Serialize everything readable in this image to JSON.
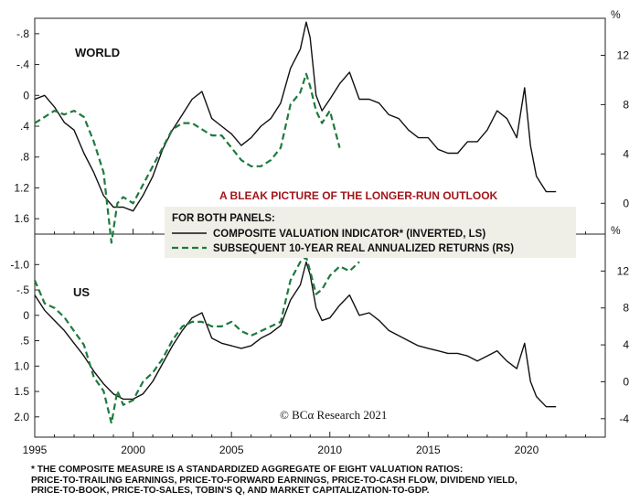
{
  "chart_data": [
    {
      "type": "line",
      "panel": "WORLD",
      "annotation": "A BLEAK PICTURE OF THE LONGER-RUN OUTLOOK",
      "x_range": [
        1995,
        2024
      ],
      "x_ticks": [
        "1995",
        "2000",
        "2005",
        "2010",
        "2015",
        "2020"
      ],
      "y_left": {
        "ticks": [
          "-.8",
          "-.4",
          "0",
          ".4",
          ".8",
          "1.2",
          "1.6"
        ],
        "ylim": [
          1.8,
          -1.0
        ],
        "inverted": true
      },
      "y_right": {
        "unit": "%",
        "ticks": [
          "0",
          "4",
          "8",
          "12"
        ],
        "ylim": [
          -2.5,
          15
        ]
      },
      "series": [
        {
          "name": "COMPOSITE VALUATION INDICATOR* (INVERTED, LS)",
          "axis": "left",
          "color": "#111111",
          "style": "solid",
          "x": [
            1995.0,
            1995.5,
            1996.0,
            1996.5,
            1997.0,
            1997.5,
            1998.0,
            1998.5,
            1999.0,
            1999.5,
            2000.0,
            2000.5,
            2001.0,
            2001.5,
            2002.0,
            2002.5,
            2003.0,
            2003.5,
            2004.0,
            2004.5,
            2005.0,
            2005.5,
            2006.0,
            2006.5,
            2007.0,
            2007.5,
            2008.0,
            2008.5,
            2008.8,
            2009.0,
            2009.3,
            2009.6,
            2010.0,
            2010.5,
            2011.0,
            2011.5,
            2012.0,
            2012.5,
            2013.0,
            2013.5,
            2014.0,
            2014.5,
            2015.0,
            2015.5,
            2016.0,
            2016.5,
            2017.0,
            2017.5,
            2018.0,
            2018.5,
            2019.0,
            2019.5,
            2019.9,
            2020.2,
            2020.5,
            2021.0,
            2021.5
          ],
          "y": [
            0.05,
            0.0,
            0.15,
            0.35,
            0.45,
            0.75,
            1.0,
            1.3,
            1.45,
            1.45,
            1.5,
            1.3,
            1.05,
            0.7,
            0.45,
            0.25,
            0.05,
            -0.05,
            0.3,
            0.4,
            0.5,
            0.65,
            0.55,
            0.4,
            0.3,
            0.1,
            -0.35,
            -0.6,
            -0.95,
            -0.75,
            0.0,
            0.2,
            0.05,
            -0.15,
            -0.3,
            0.05,
            0.05,
            0.1,
            0.25,
            0.3,
            0.45,
            0.55,
            0.55,
            0.7,
            0.75,
            0.75,
            0.6,
            0.6,
            0.45,
            0.2,
            0.3,
            0.55,
            -0.1,
            0.65,
            1.05,
            1.25,
            1.25
          ]
        },
        {
          "name": "SUBSEQUENT 10-YEAR REAL ANNUALIZED RETURNS (RS)",
          "axis": "right",
          "color": "#1e7a3e",
          "style": "dashed",
          "x": [
            1995.0,
            1995.5,
            1996.0,
            1996.5,
            1997.0,
            1997.5,
            1998.0,
            1998.5,
            1998.9,
            1999.2,
            1999.5,
            2000.0,
            2000.5,
            2001.0,
            2001.5,
            2002.0,
            2002.5,
            2003.0,
            2003.5,
            2004.0,
            2004.5,
            2005.0,
            2005.5,
            2006.0,
            2006.5,
            2007.0,
            2007.5,
            2008.0,
            2008.5,
            2008.8,
            2009.0,
            2009.3,
            2009.6,
            2010.0,
            2010.5
          ],
          "y": [
            6.5,
            7.0,
            7.5,
            7.2,
            7.5,
            7.0,
            5.0,
            2.5,
            -3.2,
            0.0,
            0.5,
            0.0,
            1.5,
            3.0,
            4.5,
            6.0,
            6.5,
            6.5,
            6.0,
            5.5,
            5.5,
            4.5,
            3.5,
            3.0,
            3.0,
            3.5,
            4.5,
            8.0,
            9.0,
            10.5,
            9.5,
            7.5,
            6.5,
            7.5,
            4.5
          ]
        }
      ]
    },
    {
      "type": "line",
      "panel": "US",
      "x_range": [
        1995,
        2024
      ],
      "x_ticks": [
        "1995",
        "2000",
        "2005",
        "2010",
        "2015",
        "2020"
      ],
      "y_left": {
        "ticks": [
          "-1.0",
          "-.5",
          "0",
          ".5",
          "1.0",
          "1.5",
          "2.0"
        ],
        "ylim": [
          2.4,
          -1.6
        ],
        "inverted": true
      },
      "y_right": {
        "unit": "%",
        "ticks": [
          "-4",
          "0",
          "4",
          "8",
          "12"
        ],
        "ylim": [
          -6,
          16
        ]
      },
      "series": [
        {
          "name": "COMPOSITE VALUATION INDICATOR* (INVERTED, LS)",
          "axis": "left",
          "color": "#111111",
          "style": "solid",
          "x": [
            1995.0,
            1995.5,
            1996.0,
            1996.5,
            1997.0,
            1997.5,
            1998.0,
            1998.5,
            1999.0,
            1999.5,
            2000.0,
            2000.5,
            2001.0,
            2001.5,
            2002.0,
            2002.5,
            2003.0,
            2003.5,
            2004.0,
            2004.5,
            2005.0,
            2005.5,
            2006.0,
            2006.5,
            2007.0,
            2007.5,
            2008.0,
            2008.5,
            2008.8,
            2009.0,
            2009.3,
            2009.6,
            2010.0,
            2010.5,
            2011.0,
            2011.5,
            2012.0,
            2012.5,
            2013.0,
            2013.5,
            2014.0,
            2014.5,
            2015.0,
            2015.5,
            2016.0,
            2016.5,
            2017.0,
            2017.5,
            2018.0,
            2018.5,
            2019.0,
            2019.5,
            2019.9,
            2020.2,
            2020.5,
            2021.0,
            2021.5
          ],
          "y": [
            -0.4,
            -0.1,
            0.1,
            0.3,
            0.55,
            0.8,
            1.1,
            1.35,
            1.55,
            1.65,
            1.65,
            1.55,
            1.3,
            0.95,
            0.6,
            0.3,
            0.05,
            -0.05,
            0.45,
            0.55,
            0.6,
            0.65,
            0.6,
            0.45,
            0.35,
            0.2,
            -0.3,
            -0.6,
            -1.05,
            -0.8,
            -0.15,
            0.1,
            0.05,
            -0.2,
            -0.4,
            0.0,
            -0.05,
            0.1,
            0.3,
            0.4,
            0.5,
            0.6,
            0.65,
            0.7,
            0.75,
            0.75,
            0.8,
            0.9,
            0.8,
            0.7,
            0.9,
            1.05,
            0.55,
            1.3,
            1.6,
            1.8,
            1.8
          ]
        },
        {
          "name": "SUBSEQUENT 10-YEAR REAL ANNUALIZED RETURNS (RS)",
          "axis": "right",
          "color": "#1e7a3e",
          "style": "dashed",
          "x": [
            1995.0,
            1995.5,
            1996.0,
            1996.5,
            1997.0,
            1997.5,
            1998.0,
            1998.5,
            1998.9,
            1999.2,
            1999.5,
            2000.0,
            2000.5,
            2001.0,
            2001.5,
            2002.0,
            2002.5,
            2003.0,
            2003.5,
            2004.0,
            2004.5,
            2005.0,
            2005.5,
            2006.0,
            2006.5,
            2007.0,
            2007.5,
            2008.0,
            2008.5,
            2008.8,
            2009.0,
            2009.3,
            2009.6,
            2010.0,
            2010.5,
            2011.0,
            2011.5
          ],
          "y": [
            11.0,
            8.5,
            8.0,
            7.0,
            5.5,
            4.0,
            0.5,
            -1.0,
            -4.5,
            -1.0,
            -2.5,
            -2.0,
            0.0,
            1.0,
            2.5,
            4.5,
            6.0,
            6.5,
            6.5,
            6.0,
            6.0,
            6.5,
            5.5,
            5.0,
            5.5,
            6.0,
            6.5,
            11.0,
            13.0,
            13.5,
            12.0,
            9.5,
            10.0,
            11.5,
            12.5,
            12.0,
            13.0
          ]
        }
      ]
    }
  ],
  "legend": {
    "header": "FOR BOTH PANELS:",
    "items": [
      {
        "label": "COMPOSITE VALUATION INDICATOR* (INVERTED, LS)",
        "color": "#111111",
        "style": "solid"
      },
      {
        "label": "SUBSEQUENT 10-YEAR REAL ANNUALIZED RETURNS (RS)",
        "color": "#1e7a3e",
        "style": "dashed"
      }
    ]
  },
  "credit": "© BCα Research 2021",
  "footnote": [
    "* THE COMPOSITE MEASURE IS A STANDARDIZED AGGREGATE OF EIGHT VALUATION RATIOS:",
    "PRICE-TO-TRAILING EARNINGS, PRICE-TO-FORWARD EARNINGS, PRICE-TO-CASH FLOW, DIVIDEND YIELD,",
    "PRICE-TO-BOOK, PRICE-TO-SALES, TOBIN'S Q, AND MARKET CAPITALIZATION-TO-GDP."
  ],
  "colors": {
    "valuation_line": "#111111",
    "returns_line": "#1e7a3e",
    "headline": "#a3161c",
    "legend_background": "#efefe8"
  }
}
